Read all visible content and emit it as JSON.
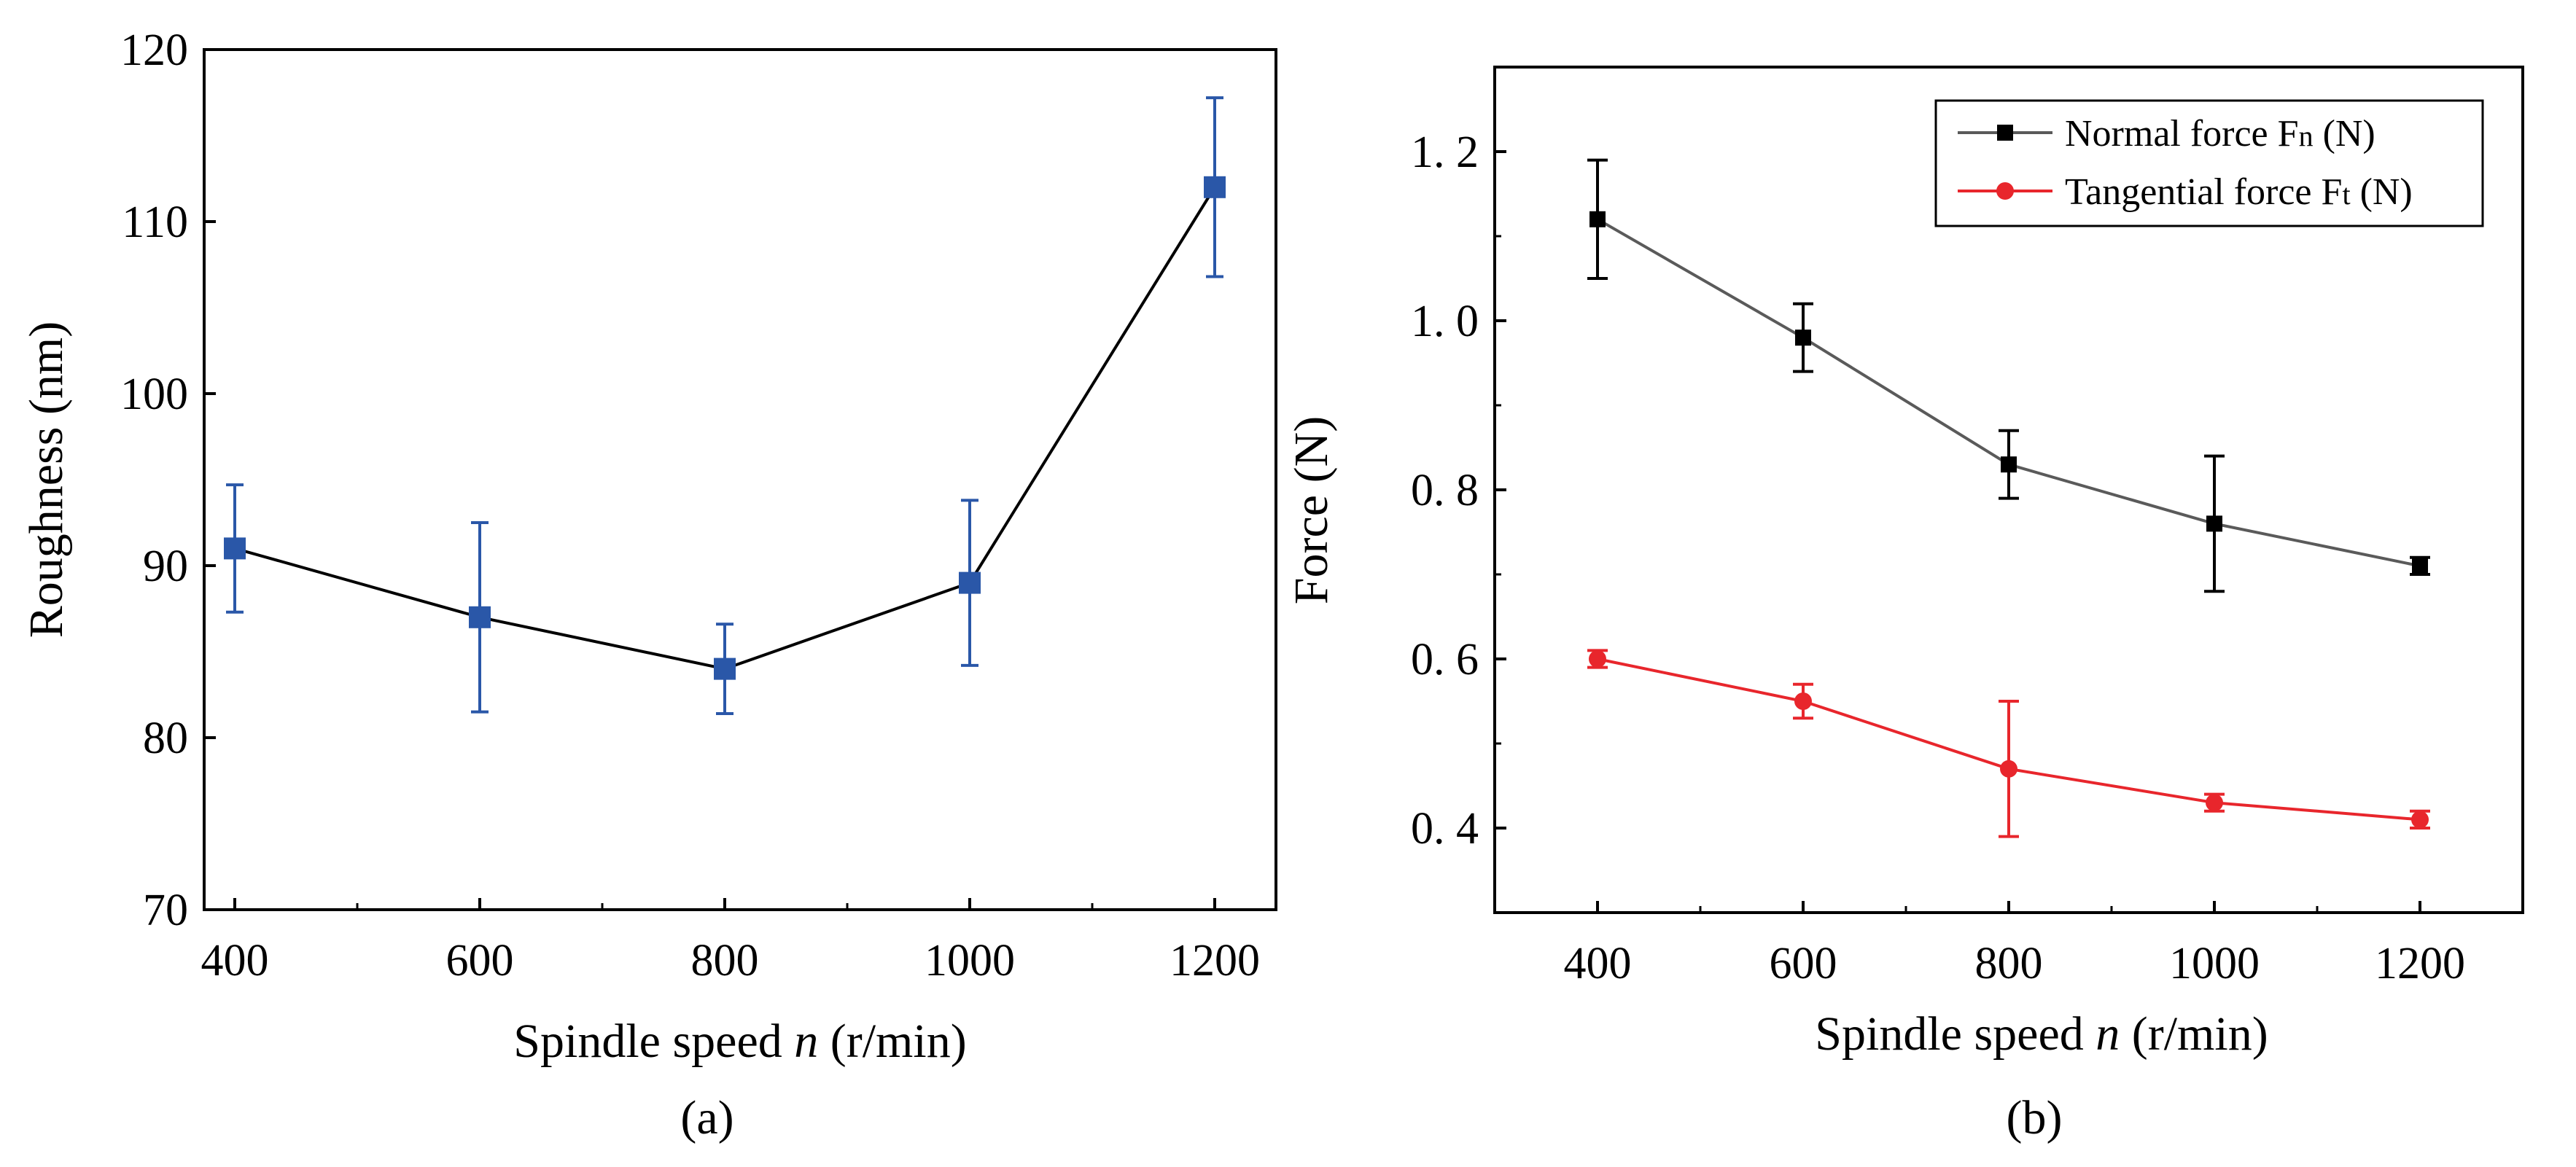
{
  "figure": {
    "label_a": "(a)",
    "label_b": "(b)"
  },
  "chart_data": [
    {
      "id": "a",
      "type": "line",
      "title": "",
      "xlabel": "Spindle speed n (r/min)",
      "xlabel_parts": {
        "pre": "Spindle speed ",
        "italic": "n",
        "post": " (r/min)"
      },
      "ylabel": "Roughness (nm)",
      "xlim": [
        375,
        1250
      ],
      "ylim": [
        70,
        120
      ],
      "xticks": [
        400,
        600,
        800,
        1000,
        1200
      ],
      "xtick_labels": [
        "400",
        "600",
        "800",
        "1000",
        "1200"
      ],
      "yticks": [
        70,
        80,
        90,
        100,
        110,
        120
      ],
      "ytick_labels": [
        "70",
        "80",
        "90",
        "100",
        "110",
        "120"
      ],
      "series": [
        {
          "name": "Roughness",
          "line_color": "#000000",
          "marker_color": "#2a57a8",
          "marker": "square",
          "x": [
            400,
            600,
            800,
            1000,
            1200
          ],
          "y": [
            91,
            87,
            84,
            89,
            112
          ],
          "err_low": [
            87.3,
            81.5,
            81.4,
            84.2,
            106.8
          ],
          "err_high": [
            94.7,
            92.5,
            86.6,
            93.8,
            117.2
          ]
        }
      ]
    },
    {
      "id": "b",
      "type": "line",
      "title": "",
      "xlabel": "Spindle speed n (r/min)",
      "xlabel_parts": {
        "pre": "Spindle speed ",
        "italic": "n",
        "post": " (r/min)"
      },
      "ylabel": "Force (N)",
      "xlim": [
        300,
        1300
      ],
      "ylim": [
        0.3,
        1.3
      ],
      "xticks": [
        400,
        600,
        800,
        1000,
        1200
      ],
      "xtick_labels": [
        "400",
        "600",
        "800",
        "1000",
        "1200"
      ],
      "yticks": [
        0.4,
        0.6,
        0.8,
        1.0,
        1.2
      ],
      "ytick_labels": [
        "0. 4",
        "0. 6",
        "0. 8",
        "1. 0",
        "1. 2"
      ],
      "legend": {
        "position": "top-right"
      },
      "series": [
        {
          "name": "Normal force Fn (N)",
          "legend_parts": {
            "pre": "Normal force F",
            "sub": "n",
            "post": " (N)"
          },
          "line_color": "#5a5a5a",
          "marker_color": "#000000",
          "errbar_color": "#000000",
          "marker": "square",
          "x": [
            400,
            600,
            800,
            1000,
            1200
          ],
          "y": [
            1.12,
            0.98,
            0.83,
            0.76,
            0.71
          ],
          "err_low": [
            1.05,
            0.94,
            0.79,
            0.68,
            0.7
          ],
          "err_high": [
            1.19,
            1.02,
            0.87,
            0.84,
            0.72
          ]
        },
        {
          "name": "Tangential force Ft (N)",
          "legend_parts": {
            "pre": "Tangential force F",
            "sub": "t",
            "post": " (N)"
          },
          "line_color": "#e8262c",
          "marker_color": "#e8262c",
          "errbar_color": "#e8262c",
          "marker": "circle",
          "x": [
            400,
            600,
            800,
            1000,
            1200
          ],
          "y": [
            0.6,
            0.55,
            0.47,
            0.43,
            0.41
          ],
          "err_low": [
            0.59,
            0.53,
            0.39,
            0.42,
            0.4
          ],
          "err_high": [
            0.61,
            0.57,
            0.55,
            0.44,
            0.42
          ]
        }
      ]
    }
  ]
}
